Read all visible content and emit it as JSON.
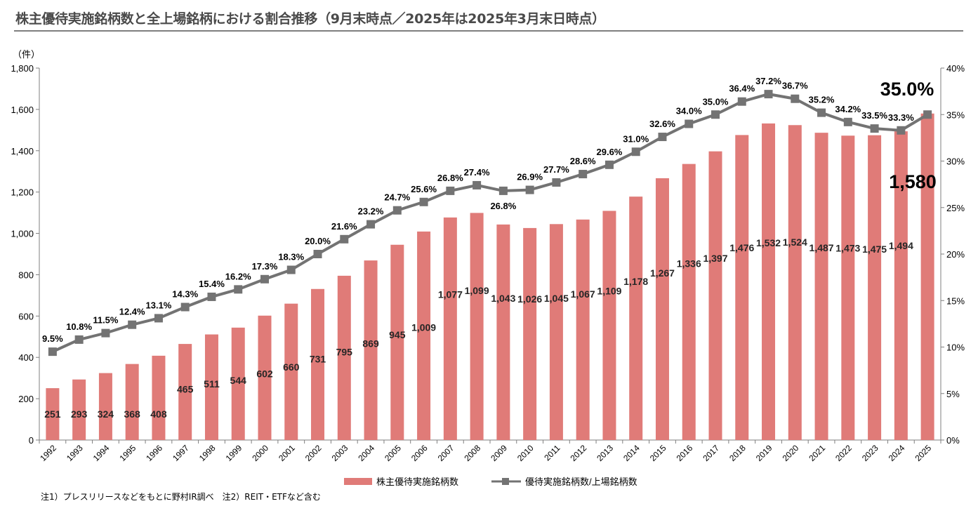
{
  "title": "株主優待実施銘柄数と全上場銘柄における割合推移（9月末時点／2025年は2025年3月末日時点）",
  "footnote": "注1）プレスリリースなどをもとに野村IR調べ　注2）REIT・ETFなど含む",
  "colors": {
    "bar": "#E07B78",
    "line": "#737373",
    "axis": "#7f7f7f"
  },
  "chart_data": {
    "type": "bar",
    "title": "株主優待実施銘柄数と全上場銘柄における割合推移（9月末時点／2025年は2025年3月末日時点）",
    "categories": [
      "1992",
      "1993",
      "1994",
      "1995",
      "1996",
      "1997",
      "1998",
      "1999",
      "2000",
      "2001",
      "2002",
      "2003",
      "2004",
      "2005",
      "2006",
      "2007",
      "2008",
      "2009",
      "2010",
      "2011",
      "2012",
      "2013",
      "2014",
      "2015",
      "2016",
      "2017",
      "2018",
      "2019",
      "2020",
      "2021",
      "2022",
      "2023",
      "2024",
      "2025"
    ],
    "y_left": {
      "unit_label": "（件）",
      "ylim": [
        0,
        1800
      ],
      "ticks": [
        "0",
        "200",
        "400",
        "600",
        "800",
        "1,000",
        "1,200",
        "1,400",
        "1,600",
        "1,800"
      ]
    },
    "y_right": {
      "ylim": [
        0,
        40
      ],
      "ticks": [
        "0%",
        "5%",
        "10%",
        "15%",
        "20%",
        "25%",
        "30%",
        "35%",
        "40%"
      ]
    },
    "series": [
      {
        "name": "株主優待実施銘柄数",
        "type": "bar",
        "values": [
          251,
          293,
          324,
          368,
          408,
          465,
          511,
          544,
          602,
          660,
          731,
          795,
          869,
          945,
          1009,
          1077,
          1099,
          1043,
          1026,
          1045,
          1067,
          1109,
          1178,
          1267,
          1336,
          1397,
          1476,
          1532,
          1524,
          1487,
          1473,
          1475,
          1494,
          1580
        ],
        "labels": [
          "251",
          "293",
          "324",
          "368",
          "408",
          "465",
          "511",
          "544",
          "602",
          "660",
          "731",
          "795",
          "869",
          "945",
          "1,009",
          "1,077",
          "1,099",
          "1,043",
          "1,026",
          "1,045",
          "1,067",
          "1,109",
          "1,178",
          "1,267",
          "1,336",
          "1,397",
          "1,476",
          "1,532",
          "1,524",
          "1,487",
          "1,473",
          "1,475",
          "1,494",
          "1,580"
        ]
      },
      {
        "name": "優待実施銘柄数/上場銘柄数",
        "type": "line",
        "axis": "right",
        "values": [
          9.5,
          10.8,
          11.5,
          12.4,
          13.1,
          14.3,
          15.4,
          16.2,
          17.3,
          18.3,
          20.0,
          21.6,
          23.2,
          24.7,
          25.6,
          26.8,
          27.4,
          26.8,
          26.9,
          27.7,
          28.6,
          29.6,
          31.0,
          32.6,
          34.0,
          35.0,
          36.4,
          37.2,
          36.7,
          35.2,
          34.2,
          33.5,
          33.3,
          35.0
        ],
        "labels": [
          "9.5%",
          "10.8%",
          "11.5%",
          "12.4%",
          "13.1%",
          "14.3%",
          "15.4%",
          "16.2%",
          "17.3%",
          "18.3%",
          "20.0%",
          "21.6%",
          "23.2%",
          "24.7%",
          "25.6%",
          "26.8%",
          "27.4%",
          "26.8%",
          "26.9%",
          "27.7%",
          "28.6%",
          "29.6%",
          "31.0%",
          "32.6%",
          "34.0%",
          "35.0%",
          "36.4%",
          "37.2%",
          "36.7%",
          "35.2%",
          "34.2%",
          "33.5%",
          "33.3%",
          "35.0%"
        ]
      }
    ],
    "legend_position": "bottom",
    "grid": false
  }
}
